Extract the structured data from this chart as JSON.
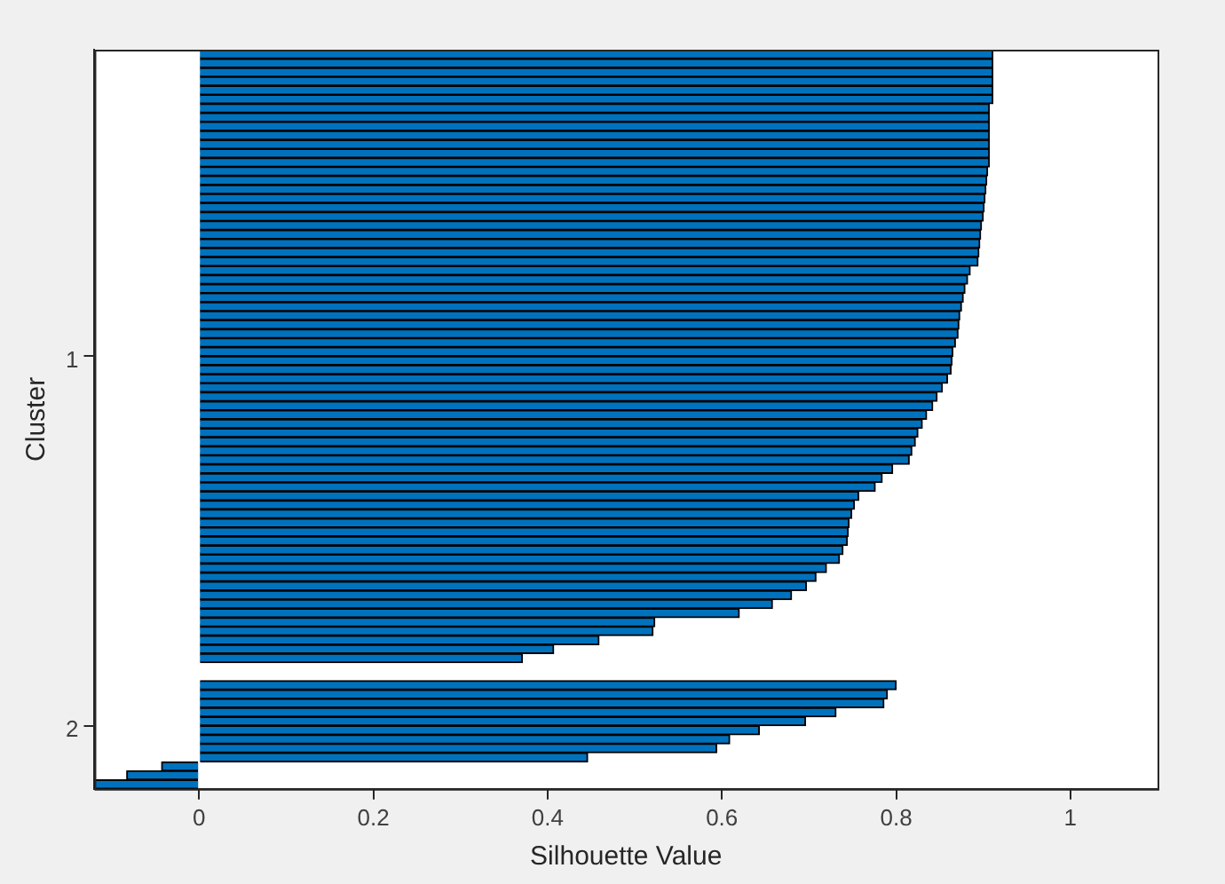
{
  "chart_data": {
    "type": "bar",
    "orientation": "horizontal",
    "xlabel": "Silhouette Value",
    "ylabel": "Cluster",
    "categories": [
      null,
      null,
      null,
      null,
      null,
      null,
      null,
      null,
      null,
      null,
      null,
      null,
      null,
      null,
      null,
      null,
      null,
      null,
      null,
      null,
      null,
      null,
      null,
      null,
      null,
      null,
      null,
      null,
      null,
      null,
      null,
      null,
      null,
      null,
      "1",
      null,
      null,
      null,
      null,
      null,
      null,
      null,
      null,
      null,
      null,
      null,
      null,
      null,
      null,
      null,
      null,
      null,
      null,
      null,
      null,
      null,
      null,
      null,
      null,
      null,
      null,
      null,
      null,
      null,
      null,
      null,
      null,
      null,
      null,
      null,
      null,
      null,
      null,
      null,
      null,
      "2",
      null,
      null,
      null,
      null,
      null,
      null
    ],
    "values": [
      0.911,
      0.911,
      0.911,
      0.911,
      0.911,
      0.911,
      0.907,
      0.907,
      0.907,
      0.907,
      0.907,
      0.907,
      0.907,
      0.905,
      0.904,
      0.903,
      0.902,
      0.901,
      0.9,
      0.898,
      0.897,
      0.896,
      0.895,
      0.894,
      0.885,
      0.882,
      0.879,
      0.877,
      0.875,
      0.873,
      0.872,
      0.871,
      0.868,
      0.865,
      0.864,
      0.863,
      0.859,
      0.853,
      0.847,
      0.842,
      0.835,
      0.83,
      0.825,
      0.822,
      0.818,
      0.815,
      0.796,
      0.784,
      0.776,
      0.757,
      0.752,
      0.749,
      0.746,
      0.745,
      0.744,
      0.739,
      0.735,
      0.72,
      0.708,
      0.697,
      0.68,
      0.658,
      0.62,
      0.523,
      0.521,
      0.459,
      0.407,
      0.371,
      null,
      null,
      0.8,
      0.79,
      0.786,
      0.731,
      0.696,
      0.643,
      0.609,
      0.594,
      0.446,
      -0.043,
      -0.083,
      -0.12
    ],
    "color": "#0072bd",
    "xlim": [
      -0.12,
      1.1
    ],
    "xticks": [
      0,
      0.2,
      0.4,
      0.6,
      0.8,
      1
    ]
  }
}
